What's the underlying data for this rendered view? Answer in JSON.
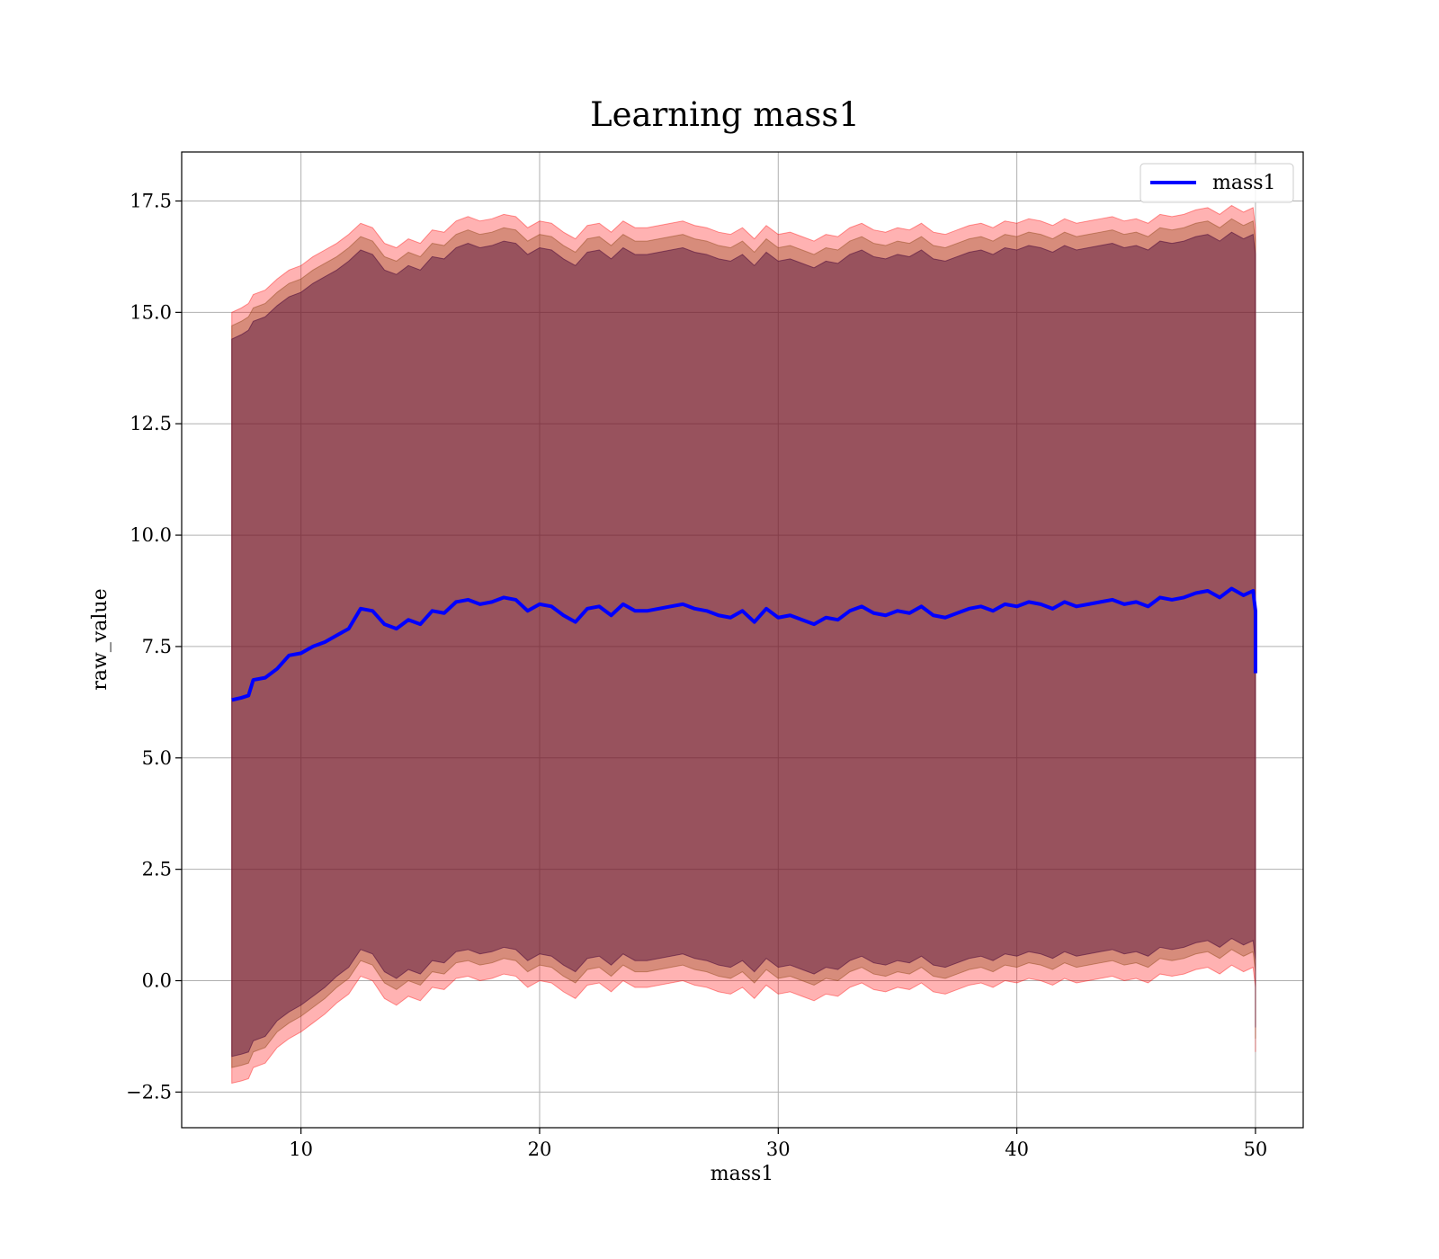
{
  "chart_data": {
    "type": "line",
    "title": "Learning mass1",
    "xlabel": "mass1",
    "ylabel": "raw_value",
    "xlim": [
      5,
      52
    ],
    "ylim": [
      -3.3,
      18.6
    ],
    "xticks": [
      10,
      20,
      30,
      40,
      50
    ],
    "xtick_labels": [
      "10",
      "20",
      "30",
      "40",
      "50"
    ],
    "yticks": [
      -2.5,
      0.0,
      2.5,
      5.0,
      7.5,
      10.0,
      12.5,
      15.0,
      17.5
    ],
    "ytick_labels": [
      "−2.5",
      "0.0",
      "2.5",
      "5.0",
      "7.5",
      "10.0",
      "12.5",
      "15.0",
      "17.5"
    ],
    "grid": true,
    "legend_position": "top-right",
    "x_range": [
      7.1,
      50
    ],
    "series": [
      {
        "name": "mass1",
        "color": "#0000ff",
        "x": [
          7.1,
          7.5,
          7.8,
          8.0,
          8.5,
          9.0,
          9.5,
          10.0,
          10.5,
          11.0,
          11.5,
          12.0,
          12.5,
          13.0,
          13.5,
          14.0,
          14.5,
          15.0,
          15.5,
          16.0,
          16.5,
          17.0,
          17.5,
          18.0,
          18.5,
          19.0,
          19.5,
          20.0,
          20.5,
          21.0,
          21.5,
          22.0,
          22.5,
          23.0,
          23.5,
          24.0,
          24.5,
          25.0,
          25.5,
          26.0,
          26.5,
          27.0,
          27.5,
          28.0,
          28.5,
          29.0,
          29.5,
          30.0,
          30.5,
          31.0,
          31.5,
          32.0,
          32.5,
          33.0,
          33.5,
          34.0,
          34.5,
          35.0,
          35.5,
          36.0,
          36.5,
          37.0,
          37.5,
          38.0,
          38.5,
          39.0,
          39.5,
          40.0,
          40.5,
          41.0,
          41.5,
          42.0,
          42.5,
          43.0,
          43.5,
          44.0,
          44.5,
          45.0,
          45.5,
          46.0,
          46.5,
          47.0,
          47.5,
          48.0,
          48.5,
          49.0,
          49.5,
          49.9,
          50.0,
          50.0
        ],
        "values": [
          6.3,
          6.35,
          6.4,
          6.75,
          6.8,
          7.0,
          7.3,
          7.35,
          7.5,
          7.6,
          7.75,
          7.9,
          8.35,
          8.3,
          8.0,
          7.9,
          8.1,
          8.0,
          8.3,
          8.25,
          8.5,
          8.55,
          8.45,
          8.5,
          8.6,
          8.55,
          8.3,
          8.45,
          8.4,
          8.2,
          8.05,
          8.35,
          8.4,
          8.2,
          8.45,
          8.3,
          8.3,
          8.35,
          8.4,
          8.45,
          8.35,
          8.3,
          8.2,
          8.15,
          8.3,
          8.05,
          8.35,
          8.15,
          8.2,
          8.1,
          8.0,
          8.15,
          8.1,
          8.3,
          8.4,
          8.25,
          8.2,
          8.3,
          8.25,
          8.4,
          8.2,
          8.15,
          8.25,
          8.35,
          8.4,
          8.3,
          8.45,
          8.4,
          8.5,
          8.45,
          8.35,
          8.5,
          8.4,
          8.45,
          8.5,
          8.55,
          8.45,
          8.5,
          8.4,
          8.6,
          8.55,
          8.6,
          8.7,
          8.75,
          8.6,
          8.8,
          8.65,
          8.75,
          8.3,
          6.9
        ]
      }
    ],
    "bands": [
      {
        "color": "#ff0000",
        "opacity": 0.3,
        "lower": [
          -2.3,
          -2.25,
          -2.2,
          -1.95,
          -1.85,
          -1.5,
          -1.3,
          -1.15,
          -0.95,
          -0.75,
          -0.5,
          -0.3,
          0.1,
          0.0,
          -0.4,
          -0.55,
          -0.35,
          -0.45,
          -0.15,
          -0.2,
          0.05,
          0.1,
          0.0,
          0.05,
          0.15,
          0.1,
          -0.15,
          0.0,
          -0.05,
          -0.25,
          -0.4,
          -0.1,
          -0.05,
          -0.25,
          0.0,
          -0.15,
          -0.15,
          -0.1,
          -0.05,
          0.0,
          -0.1,
          -0.15,
          -0.25,
          -0.3,
          -0.15,
          -0.4,
          -0.1,
          -0.3,
          -0.25,
          -0.35,
          -0.45,
          -0.3,
          -0.35,
          -0.15,
          -0.05,
          -0.2,
          -0.25,
          -0.15,
          -0.2,
          -0.05,
          -0.25,
          -0.3,
          -0.2,
          -0.1,
          -0.05,
          -0.15,
          0.0,
          -0.05,
          0.05,
          0.0,
          -0.1,
          0.05,
          -0.05,
          0.0,
          0.05,
          0.1,
          0.0,
          0.05,
          -0.05,
          0.15,
          0.1,
          0.15,
          0.25,
          0.3,
          0.15,
          0.35,
          0.2,
          0.3,
          -0.15,
          -1.6
        ],
        "upper": [
          15.0,
          15.1,
          15.2,
          15.4,
          15.5,
          15.75,
          15.95,
          16.05,
          16.25,
          16.4,
          16.55,
          16.75,
          17.0,
          16.9,
          16.55,
          16.45,
          16.65,
          16.55,
          16.85,
          16.8,
          17.05,
          17.15,
          17.05,
          17.1,
          17.2,
          17.15,
          16.9,
          17.05,
          17.0,
          16.8,
          16.65,
          16.95,
          17.0,
          16.8,
          17.05,
          16.9,
          16.9,
          16.95,
          17.0,
          17.05,
          16.95,
          16.9,
          16.8,
          16.75,
          16.9,
          16.65,
          16.95,
          16.75,
          16.8,
          16.7,
          16.6,
          16.75,
          16.7,
          16.9,
          17.0,
          16.85,
          16.8,
          16.9,
          16.85,
          17.0,
          16.8,
          16.75,
          16.85,
          16.95,
          17.0,
          16.9,
          17.05,
          17.0,
          17.1,
          17.05,
          16.95,
          17.1,
          17.0,
          17.05,
          17.1,
          17.15,
          17.05,
          17.1,
          17.0,
          17.2,
          17.15,
          17.2,
          17.3,
          17.35,
          17.2,
          17.4,
          17.25,
          17.35,
          16.9,
          15.5
        ]
      },
      {
        "color": "#8b4513",
        "opacity": 0.35,
        "lower": [
          -1.95,
          -1.9,
          -1.85,
          -1.6,
          -1.5,
          -1.15,
          -0.95,
          -0.8,
          -0.6,
          -0.4,
          -0.15,
          0.05,
          0.45,
          0.35,
          -0.05,
          -0.2,
          0.0,
          -0.1,
          0.2,
          0.15,
          0.4,
          0.45,
          0.35,
          0.4,
          0.5,
          0.45,
          0.2,
          0.35,
          0.3,
          0.1,
          -0.05,
          0.25,
          0.3,
          0.1,
          0.35,
          0.2,
          0.2,
          0.25,
          0.3,
          0.35,
          0.25,
          0.2,
          0.1,
          0.05,
          0.2,
          -0.05,
          0.25,
          0.05,
          0.1,
          0.0,
          -0.1,
          0.05,
          0.0,
          0.2,
          0.3,
          0.15,
          0.1,
          0.2,
          0.15,
          0.3,
          0.1,
          0.05,
          0.15,
          0.25,
          0.3,
          0.2,
          0.35,
          0.3,
          0.4,
          0.35,
          0.25,
          0.4,
          0.3,
          0.35,
          0.4,
          0.45,
          0.35,
          0.4,
          0.3,
          0.5,
          0.45,
          0.5,
          0.6,
          0.65,
          0.5,
          0.7,
          0.55,
          0.65,
          0.2,
          -1.3
        ],
        "upper": [
          14.7,
          14.8,
          14.9,
          15.1,
          15.2,
          15.45,
          15.65,
          15.75,
          15.95,
          16.1,
          16.25,
          16.45,
          16.7,
          16.6,
          16.25,
          16.15,
          16.35,
          16.25,
          16.55,
          16.5,
          16.75,
          16.85,
          16.75,
          16.8,
          16.9,
          16.85,
          16.6,
          16.75,
          16.7,
          16.5,
          16.35,
          16.65,
          16.7,
          16.5,
          16.75,
          16.6,
          16.6,
          16.65,
          16.7,
          16.75,
          16.65,
          16.6,
          16.5,
          16.45,
          16.6,
          16.35,
          16.65,
          16.45,
          16.5,
          16.4,
          16.3,
          16.45,
          16.4,
          16.6,
          16.7,
          16.55,
          16.5,
          16.6,
          16.55,
          16.7,
          16.5,
          16.45,
          16.55,
          16.65,
          16.7,
          16.6,
          16.75,
          16.7,
          16.8,
          16.75,
          16.65,
          16.8,
          16.7,
          16.75,
          16.8,
          16.85,
          16.75,
          16.8,
          16.7,
          16.9,
          16.85,
          16.9,
          17.0,
          17.05,
          16.9,
          17.1,
          16.95,
          17.05,
          16.6,
          15.2
        ]
      },
      {
        "color": "#4b0a3a",
        "opacity": 0.45,
        "lower": [
          -1.7,
          -1.65,
          -1.6,
          -1.35,
          -1.25,
          -0.9,
          -0.7,
          -0.55,
          -0.35,
          -0.15,
          0.1,
          0.3,
          0.7,
          0.6,
          0.2,
          0.05,
          0.25,
          0.15,
          0.45,
          0.4,
          0.65,
          0.7,
          0.6,
          0.65,
          0.75,
          0.7,
          0.45,
          0.6,
          0.55,
          0.35,
          0.2,
          0.5,
          0.55,
          0.35,
          0.6,
          0.45,
          0.45,
          0.5,
          0.55,
          0.6,
          0.5,
          0.45,
          0.35,
          0.3,
          0.45,
          0.2,
          0.5,
          0.3,
          0.35,
          0.25,
          0.15,
          0.3,
          0.25,
          0.45,
          0.55,
          0.4,
          0.35,
          0.45,
          0.4,
          0.55,
          0.35,
          0.3,
          0.4,
          0.5,
          0.55,
          0.45,
          0.6,
          0.55,
          0.65,
          0.6,
          0.5,
          0.65,
          0.55,
          0.6,
          0.65,
          0.7,
          0.6,
          0.65,
          0.55,
          0.75,
          0.7,
          0.75,
          0.85,
          0.9,
          0.75,
          0.95,
          0.8,
          0.9,
          0.45,
          -1.05
        ],
        "upper": [
          14.4,
          14.5,
          14.6,
          14.8,
          14.9,
          15.15,
          15.35,
          15.45,
          15.65,
          15.8,
          15.95,
          16.15,
          16.4,
          16.3,
          15.95,
          15.85,
          16.05,
          15.95,
          16.25,
          16.2,
          16.45,
          16.55,
          16.45,
          16.5,
          16.6,
          16.55,
          16.3,
          16.45,
          16.4,
          16.2,
          16.05,
          16.35,
          16.4,
          16.2,
          16.45,
          16.3,
          16.3,
          16.35,
          16.4,
          16.45,
          16.35,
          16.3,
          16.2,
          16.15,
          16.3,
          16.05,
          16.35,
          16.15,
          16.2,
          16.1,
          16.0,
          16.15,
          16.1,
          16.3,
          16.4,
          16.25,
          16.2,
          16.3,
          16.25,
          16.4,
          16.2,
          16.15,
          16.25,
          16.35,
          16.4,
          16.3,
          16.45,
          16.4,
          16.5,
          16.45,
          16.35,
          16.5,
          16.4,
          16.45,
          16.5,
          16.55,
          16.45,
          16.5,
          16.4,
          16.6,
          16.55,
          16.6,
          16.7,
          16.75,
          16.6,
          16.8,
          16.65,
          16.75,
          16.3,
          14.9
        ]
      }
    ]
  }
}
